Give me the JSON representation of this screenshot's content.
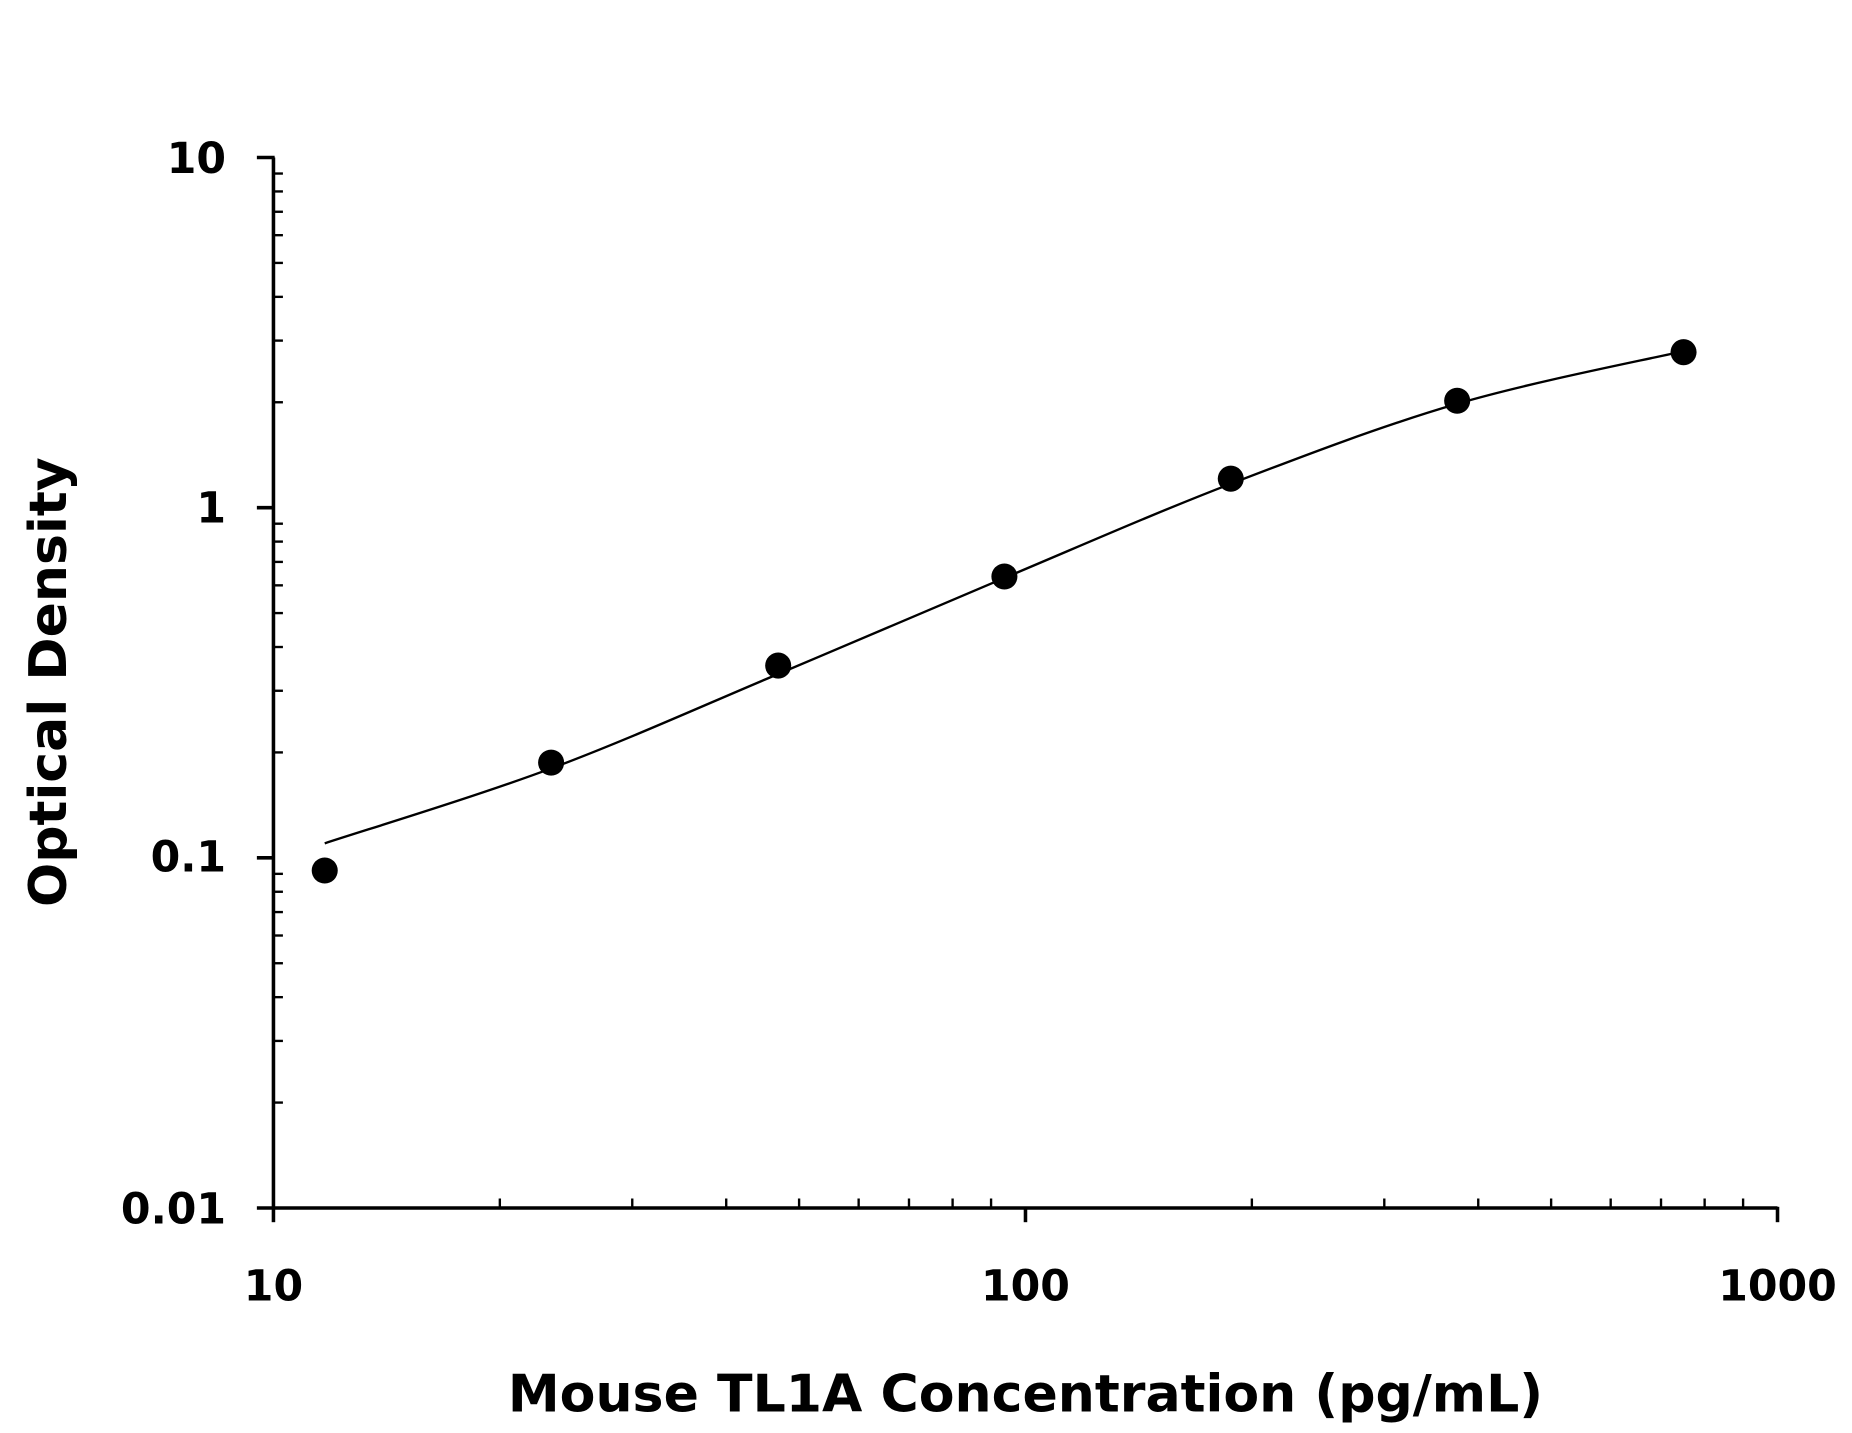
{
  "chart_data": {
    "type": "scatter",
    "title": "",
    "xlabel": "Mouse TL1A Concentration (pg/mL)",
    "ylabel": "Optical Density",
    "xscale": "log",
    "yscale": "log",
    "xlim": [
      10,
      1000
    ],
    "ylim": [
      0.01,
      10
    ],
    "xticks": [
      "10",
      "100",
      "1000"
    ],
    "yticks": [
      "0.01",
      "0.1",
      "1",
      "10"
    ],
    "grid": false,
    "legend": "none",
    "marker_color": "#000000",
    "series": [
      {
        "x": [
          11.7,
          23.4,
          46.9,
          93.75,
          187.5,
          375,
          750
        ],
        "y": [
          0.092,
          0.187,
          0.354,
          0.636,
          1.21,
          2.02,
          2.78
        ]
      }
    ],
    "fit_curve": {
      "x": [
        11.7,
        23.4,
        46.9,
        93.75,
        187.5,
        375,
        750
      ],
      "y": [
        0.11,
        0.18,
        0.335,
        0.63,
        1.17,
        1.98,
        2.8
      ]
    }
  }
}
